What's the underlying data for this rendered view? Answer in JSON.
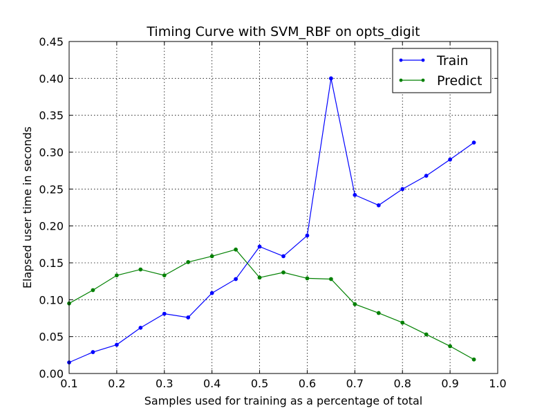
{
  "chart_data": {
    "type": "line",
    "title": "Timing Curve with SVM_RBF on opts_digit",
    "xlabel": "Samples used for training as a percentage of total",
    "ylabel": "Elapsed user time in seconds",
    "xlim": [
      0.1,
      1.0
    ],
    "ylim": [
      0.0,
      0.45
    ],
    "xticks": [
      0.1,
      0.2,
      0.3,
      0.4,
      0.5,
      0.6,
      0.7,
      0.8,
      0.9,
      1.0
    ],
    "xtick_labels": [
      "0.1",
      "0.2",
      "0.3",
      "0.4",
      "0.5",
      "0.6",
      "0.7",
      "0.8",
      "0.9",
      "1.0"
    ],
    "yticks": [
      0.0,
      0.05,
      0.1,
      0.15,
      0.2,
      0.25,
      0.3,
      0.35,
      0.4,
      0.45
    ],
    "ytick_labels": [
      "0.00",
      "0.05",
      "0.10",
      "0.15",
      "0.20",
      "0.25",
      "0.30",
      "0.35",
      "0.40",
      "0.45"
    ],
    "grid": true,
    "legend_position": "top-right",
    "x": [
      0.1,
      0.15,
      0.2,
      0.25,
      0.3,
      0.35,
      0.4,
      0.45,
      0.5,
      0.55,
      0.6,
      0.65,
      0.7,
      0.75,
      0.8,
      0.85,
      0.9,
      0.95
    ],
    "series": [
      {
        "name": "Train",
        "color": "#0000ff",
        "values": [
          0.015,
          0.029,
          0.039,
          0.062,
          0.081,
          0.076,
          0.109,
          0.128,
          0.172,
          0.159,
          0.187,
          0.4,
          0.242,
          0.228,
          0.25,
          0.268,
          0.29,
          0.313
        ]
      },
      {
        "name": "Predict",
        "color": "#008000",
        "values": [
          0.095,
          0.113,
          0.133,
          0.141,
          0.133,
          0.151,
          0.159,
          0.168,
          0.13,
          0.137,
          0.129,
          0.128,
          0.094,
          0.082,
          0.069,
          0.053,
          0.037,
          0.019
        ]
      }
    ]
  }
}
